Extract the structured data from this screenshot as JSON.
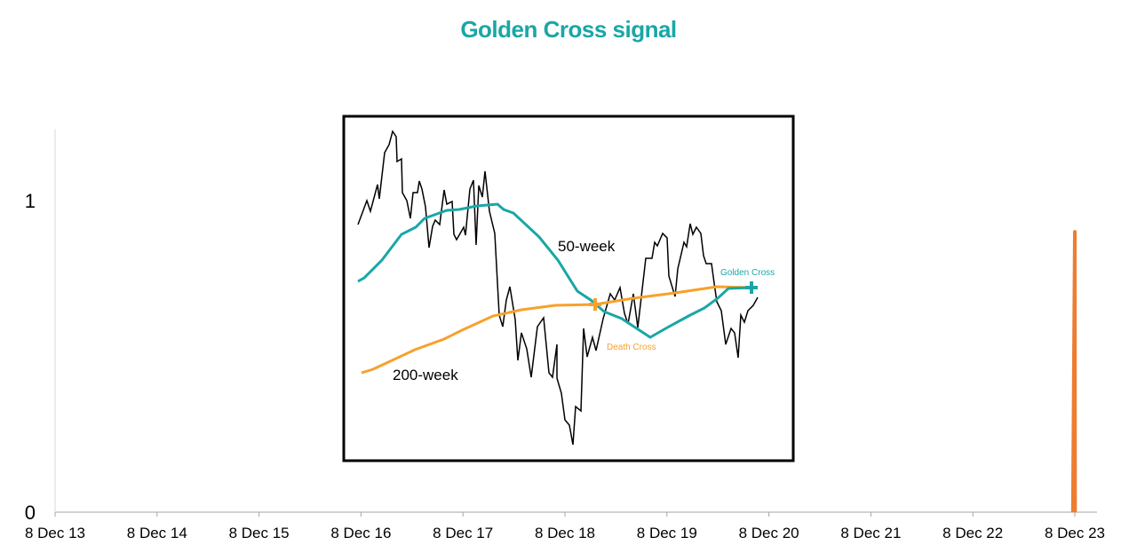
{
  "chart_data": {
    "type": "line",
    "title": "Golden Cross signal",
    "xlabel": "",
    "ylabel": "",
    "x_ticks": [
      "8 Dec 13",
      "8 Dec 14",
      "8 Dec 15",
      "8 Dec 16",
      "8 Dec 17",
      "8 Dec 18",
      "8 Dec 19",
      "8 Dec 20",
      "8 Dec 21",
      "8 Dec 22",
      "8 Dec 23"
    ],
    "y_ticks": [
      "0",
      "1"
    ],
    "ylim": [
      0,
      1.4
    ],
    "grid": false,
    "series": [
      {
        "color": "#ed7d31",
        "points": [
          [
            "1 Dec 23",
            0
          ],
          [
            "8 Dec 23",
            0.9
          ],
          [
            "9 Dec 23",
            0
          ]
        ]
      }
    ],
    "inset_image": {
      "labels": {
        "fast_ma": "50-week",
        "slow_ma": "200-week",
        "golden_cross": "Golden Cross",
        "death_cross": "Death Cross"
      },
      "colors": {
        "price": "#000000",
        "fast_ma": "#1aa6a6",
        "slow_ma": "#f7a12b"
      }
    }
  }
}
